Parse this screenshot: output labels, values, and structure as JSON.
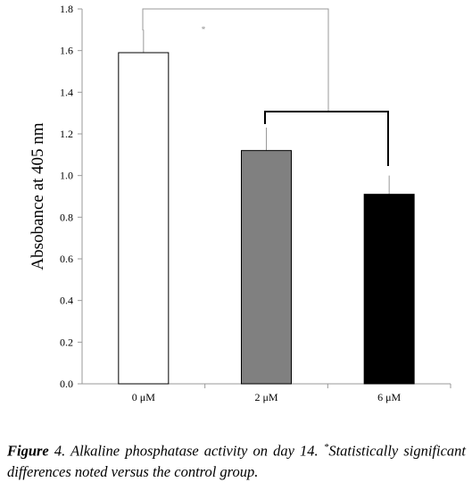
{
  "chart_data": {
    "type": "bar",
    "ylabel": "Absobance at 405 nm",
    "categories": [
      "0 μM",
      "2 μM",
      "6 μM"
    ],
    "values": [
      1.59,
      1.12,
      0.91
    ],
    "errors": [
      0.11,
      0.11,
      0.09
    ],
    "colors": [
      "#ffffff",
      "#808080",
      "#000000"
    ],
    "ylim": [
      0,
      1.8
    ],
    "yticks": [
      {
        "value": 0,
        "label": "0.0"
      },
      0.2,
      0.4,
      0.6,
      0.8,
      {
        "value": 1,
        "label": "1.0"
      },
      1.2,
      1.4,
      1.6,
      1.8
    ],
    "grid": false,
    "annotation": "*"
  },
  "caption": {
    "label": "Figure",
    "text": "4. Alkaline phosphatase activity on day 14.",
    "mark": "*",
    "note": "Statistically significant differences noted versus the control group."
  }
}
